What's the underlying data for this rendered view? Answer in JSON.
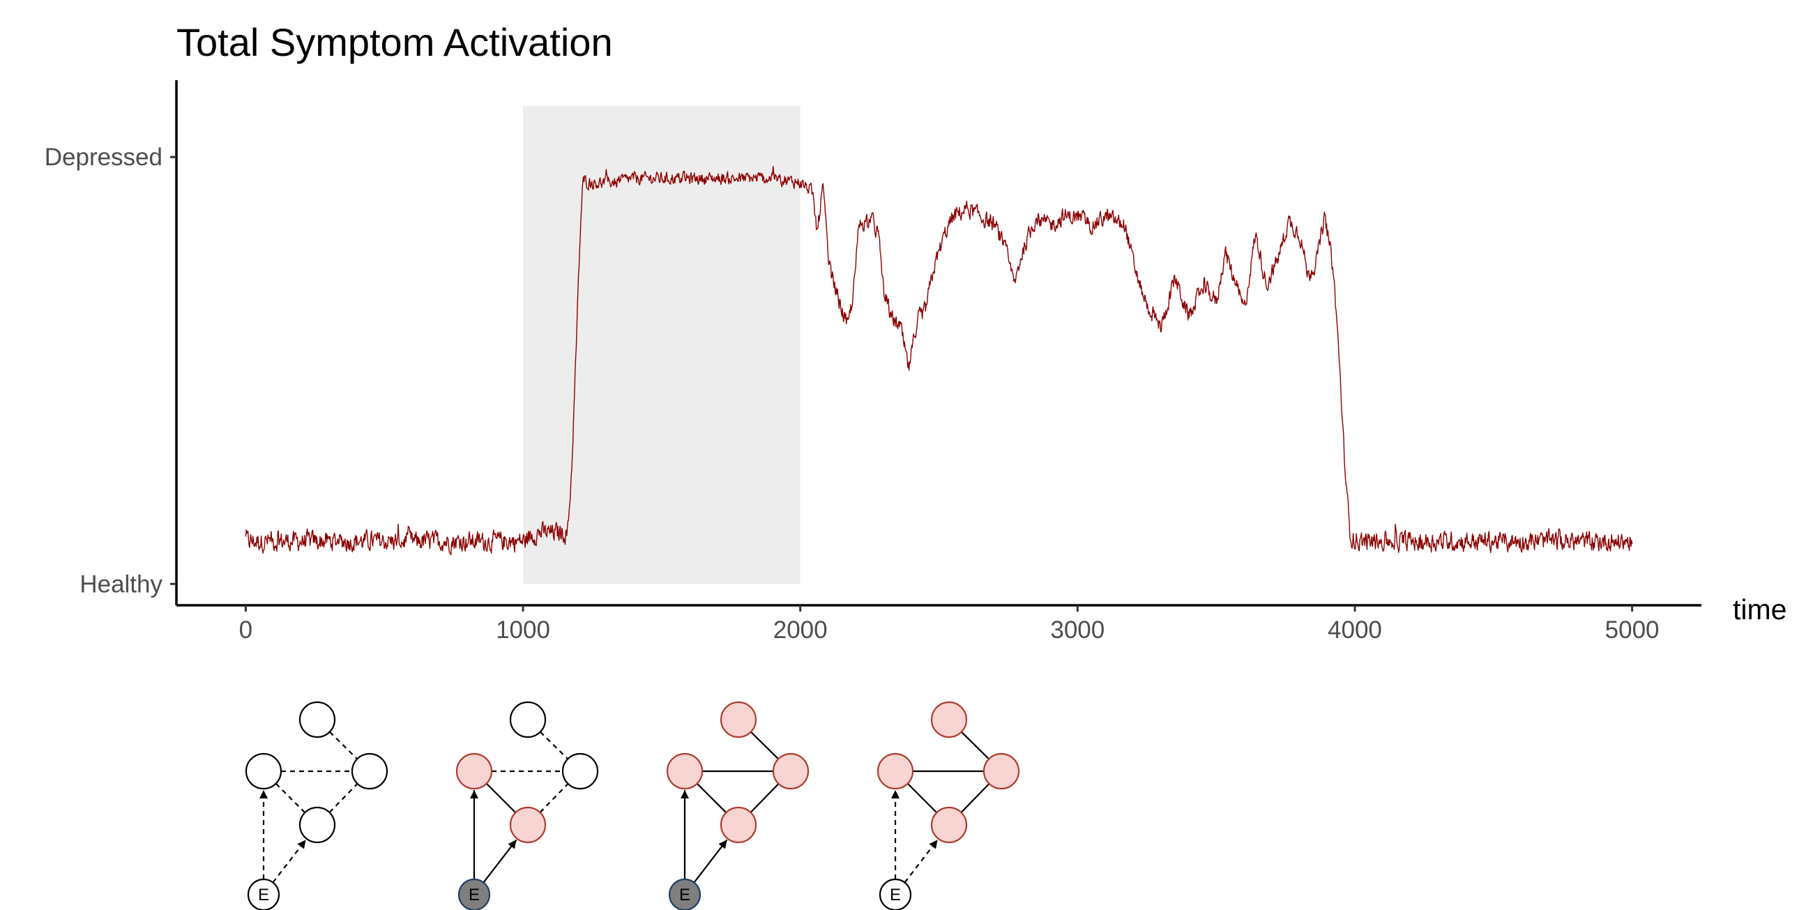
{
  "chart_data": {
    "type": "line",
    "title": "Total Symptom Activation",
    "xlabel": "time",
    "ylabel": "",
    "xlim": [
      -250,
      5250
    ],
    "x_ticks": [
      0,
      1000,
      2000,
      3000,
      4000,
      5000
    ],
    "y_ticks": [
      {
        "value": 0,
        "label": "Healthy"
      },
      {
        "value": 1,
        "label": "Depressed"
      }
    ],
    "ylim": [
      -0.05,
      1.18
    ],
    "grid": false,
    "legend": "none",
    "shaded_region": {
      "x": [
        1000,
        2000
      ],
      "y": [
        0,
        1.12
      ],
      "color": "#ededed"
    },
    "line_color": "#8b0000",
    "series": [
      {
        "values": [
          [
            0,
            0.1
          ],
          [
            100,
            0.1
          ],
          [
            200,
            0.1
          ],
          [
            300,
            0.1
          ],
          [
            400,
            0.1
          ],
          [
            500,
            0.1
          ],
          [
            600,
            0.1
          ],
          [
            700,
            0.1
          ],
          [
            800,
            0.1
          ],
          [
            900,
            0.1
          ],
          [
            1000,
            0.1
          ],
          [
            1050,
            0.12
          ],
          [
            1100,
            0.12
          ],
          [
            1160,
            0.12
          ],
          [
            1175,
            0.28
          ],
          [
            1190,
            0.55
          ],
          [
            1205,
            0.83
          ],
          [
            1215,
            0.95
          ],
          [
            1230,
            0.94
          ],
          [
            1300,
            0.94
          ],
          [
            1400,
            0.95
          ],
          [
            1500,
            0.95
          ],
          [
            1600,
            0.95
          ],
          [
            1700,
            0.95
          ],
          [
            1800,
            0.95
          ],
          [
            1900,
            0.95
          ],
          [
            2000,
            0.94
          ],
          [
            2040,
            0.92
          ],
          [
            2060,
            0.82
          ],
          [
            2080,
            0.94
          ],
          [
            2100,
            0.75
          ],
          [
            2130,
            0.68
          ],
          [
            2170,
            0.6
          ],
          [
            2190,
            0.68
          ],
          [
            2210,
            0.84
          ],
          [
            2250,
            0.86
          ],
          [
            2280,
            0.82
          ],
          [
            2300,
            0.68
          ],
          [
            2330,
            0.62
          ],
          [
            2360,
            0.6
          ],
          [
            2390,
            0.5
          ],
          [
            2420,
            0.62
          ],
          [
            2450,
            0.64
          ],
          [
            2480,
            0.74
          ],
          [
            2520,
            0.82
          ],
          [
            2550,
            0.86
          ],
          [
            2600,
            0.88
          ],
          [
            2650,
            0.86
          ],
          [
            2700,
            0.84
          ],
          [
            2740,
            0.78
          ],
          [
            2770,
            0.7
          ],
          [
            2800,
            0.78
          ],
          [
            2850,
            0.86
          ],
          [
            2900,
            0.84
          ],
          [
            2950,
            0.86
          ],
          [
            3000,
            0.86
          ],
          [
            3050,
            0.84
          ],
          [
            3100,
            0.86
          ],
          [
            3170,
            0.84
          ],
          [
            3200,
            0.75
          ],
          [
            3250,
            0.65
          ],
          [
            3300,
            0.6
          ],
          [
            3350,
            0.72
          ],
          [
            3400,
            0.62
          ],
          [
            3450,
            0.7
          ],
          [
            3500,
            0.66
          ],
          [
            3530,
            0.78
          ],
          [
            3570,
            0.7
          ],
          [
            3600,
            0.64
          ],
          [
            3640,
            0.82
          ],
          [
            3680,
            0.7
          ],
          [
            3720,
            0.76
          ],
          [
            3760,
            0.85
          ],
          [
            3800,
            0.82
          ],
          [
            3830,
            0.72
          ],
          [
            3860,
            0.76
          ],
          [
            3890,
            0.86
          ],
          [
            3920,
            0.74
          ],
          [
            3940,
            0.55
          ],
          [
            3960,
            0.3
          ],
          [
            3980,
            0.12
          ],
          [
            4000,
            0.1
          ],
          [
            4200,
            0.1
          ],
          [
            4400,
            0.1
          ],
          [
            4600,
            0.1
          ],
          [
            4800,
            0.1
          ],
          [
            5000,
            0.1
          ]
        ]
      }
    ]
  },
  "networks": [
    {
      "nodes": [
        {
          "id": "top",
          "state": "inactive"
        },
        {
          "id": "left",
          "state": "inactive"
        },
        {
          "id": "right",
          "state": "inactive"
        },
        {
          "id": "middle",
          "state": "inactive"
        },
        {
          "id": "external",
          "label": "E",
          "state": "inactive"
        }
      ],
      "edges": [
        {
          "from": "top",
          "to": "right",
          "style": "dashed"
        },
        {
          "from": "left",
          "to": "right",
          "style": "dashed"
        },
        {
          "from": "left",
          "to": "middle",
          "style": "dashed"
        },
        {
          "from": "middle",
          "to": "right",
          "style": "dashed"
        },
        {
          "from": "external",
          "to": "left",
          "style": "dashed",
          "arrow": true
        },
        {
          "from": "external",
          "to": "middle",
          "style": "dashed",
          "arrow": true
        }
      ]
    },
    {
      "nodes": [
        {
          "id": "top",
          "state": "inactive"
        },
        {
          "id": "left",
          "state": "active"
        },
        {
          "id": "right",
          "state": "inactive"
        },
        {
          "id": "middle",
          "state": "active"
        },
        {
          "id": "external",
          "label": "E",
          "state": "stress"
        }
      ],
      "edges": [
        {
          "from": "top",
          "to": "right",
          "style": "dashed"
        },
        {
          "from": "left",
          "to": "right",
          "style": "dashed"
        },
        {
          "from": "left",
          "to": "middle",
          "style": "solid"
        },
        {
          "from": "middle",
          "to": "right",
          "style": "dashed"
        },
        {
          "from": "external",
          "to": "left",
          "style": "solid",
          "arrow": true
        },
        {
          "from": "external",
          "to": "middle",
          "style": "solid",
          "arrow": true
        }
      ]
    },
    {
      "nodes": [
        {
          "id": "top",
          "state": "active"
        },
        {
          "id": "left",
          "state": "active"
        },
        {
          "id": "right",
          "state": "active"
        },
        {
          "id": "middle",
          "state": "active"
        },
        {
          "id": "external",
          "label": "E",
          "state": "stress"
        }
      ],
      "edges": [
        {
          "from": "top",
          "to": "right",
          "style": "solid"
        },
        {
          "from": "left",
          "to": "right",
          "style": "solid"
        },
        {
          "from": "left",
          "to": "middle",
          "style": "solid"
        },
        {
          "from": "middle",
          "to": "right",
          "style": "solid"
        },
        {
          "from": "external",
          "to": "left",
          "style": "solid",
          "arrow": true
        },
        {
          "from": "external",
          "to": "middle",
          "style": "solid",
          "arrow": true
        }
      ]
    },
    {
      "nodes": [
        {
          "id": "top",
          "state": "active"
        },
        {
          "id": "left",
          "state": "active"
        },
        {
          "id": "right",
          "state": "active"
        },
        {
          "id": "middle",
          "state": "active"
        },
        {
          "id": "external",
          "label": "E",
          "state": "inactive"
        }
      ],
      "edges": [
        {
          "from": "top",
          "to": "right",
          "style": "solid"
        },
        {
          "from": "left",
          "to": "right",
          "style": "solid"
        },
        {
          "from": "left",
          "to": "middle",
          "style": "solid"
        },
        {
          "from": "middle",
          "to": "right",
          "style": "solid"
        },
        {
          "from": "external",
          "to": "left",
          "style": "dashed",
          "arrow": true
        },
        {
          "from": "external",
          "to": "middle",
          "style": "dashed",
          "arrow": true
        }
      ]
    }
  ],
  "colors": {
    "active_fill": "#f8d5d2",
    "active_stroke": "#b03a2e",
    "inactive_fill": "#ffffff",
    "inactive_stroke": "#000000",
    "stress_fill": "#7f7f7f",
    "stress_stroke": "#1f3f66"
  }
}
